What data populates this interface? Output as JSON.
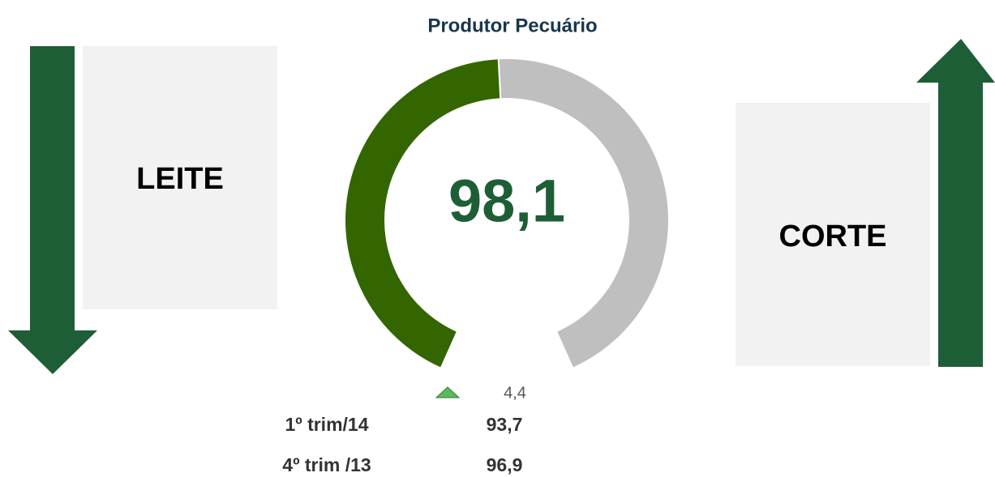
{
  "chart_data": {
    "type": "gauge",
    "title": "Produtor Pecuário",
    "value": 98.1,
    "value_label": "98,1",
    "ylim": [
      0,
      200
    ],
    "color": "#336600",
    "track_color": "#bfbfbf",
    "value_color": "#1e5e36",
    "change": 4.4,
    "change_label": "4,4",
    "rows": [
      {
        "label": "1º trim/14",
        "value": 93.7,
        "value_label": "93,7"
      },
      {
        "label": "4º trim /13",
        "value": 96.9,
        "value_label": "96,9"
      }
    ],
    "left_label": "LEITE",
    "right_label": "CORTE"
  }
}
